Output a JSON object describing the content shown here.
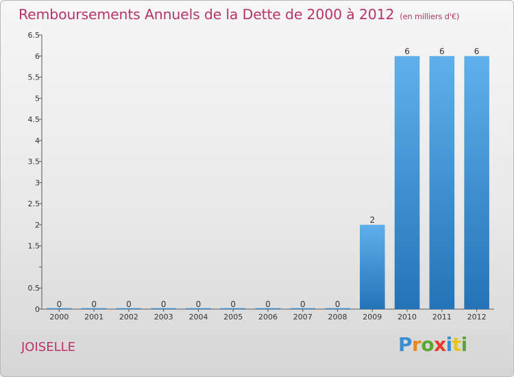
{
  "header": {
    "title": "Remboursements Annuels de la Dette de 2000 à 2012",
    "subtitle": "(en milliers d'€)"
  },
  "commune": "JOISELLE",
  "logo": {
    "letters": [
      "P",
      "r",
      "o",
      "x",
      "i",
      "t",
      "i"
    ],
    "colors": [
      "#3a8fd3",
      "#e8891f",
      "#5aa832",
      "#e83a2a",
      "#3a8fd3",
      "#e8c41f",
      "#5aa832"
    ]
  },
  "chart_data": {
    "type": "bar",
    "title": "Remboursements Annuels de la Dette de 2000 à 2012",
    "subtitle": "(en milliers d'€)",
    "xlabel": "",
    "ylabel": "",
    "categories": [
      "2000",
      "2001",
      "2002",
      "2003",
      "2004",
      "2005",
      "2006",
      "2007",
      "2008",
      "2009",
      "2010",
      "2011",
      "2012"
    ],
    "values": [
      0,
      0,
      0,
      0,
      0,
      0,
      0,
      0,
      0,
      2,
      6,
      6,
      6
    ],
    "data_labels": [
      "0",
      "0",
      "0",
      "0",
      "0",
      "0",
      "0",
      "0",
      "0",
      "2",
      "6",
      "6",
      "6"
    ],
    "ylim": [
      0,
      6.5
    ],
    "yticks": [
      0,
      0.5,
      1,
      1.5,
      2,
      2.5,
      3,
      3.5,
      4,
      4.5,
      5,
      5.5,
      6,
      6.5
    ],
    "ytick_labels": [
      "0",
      "0.5",
      "",
      "1.5",
      "2",
      "2.5",
      "3",
      "3.5",
      "4",
      "4.5",
      "5",
      "5.5",
      "6",
      "6.5"
    ],
    "grid": false,
    "legend": "none",
    "bar_color": "#3a8fd3"
  }
}
